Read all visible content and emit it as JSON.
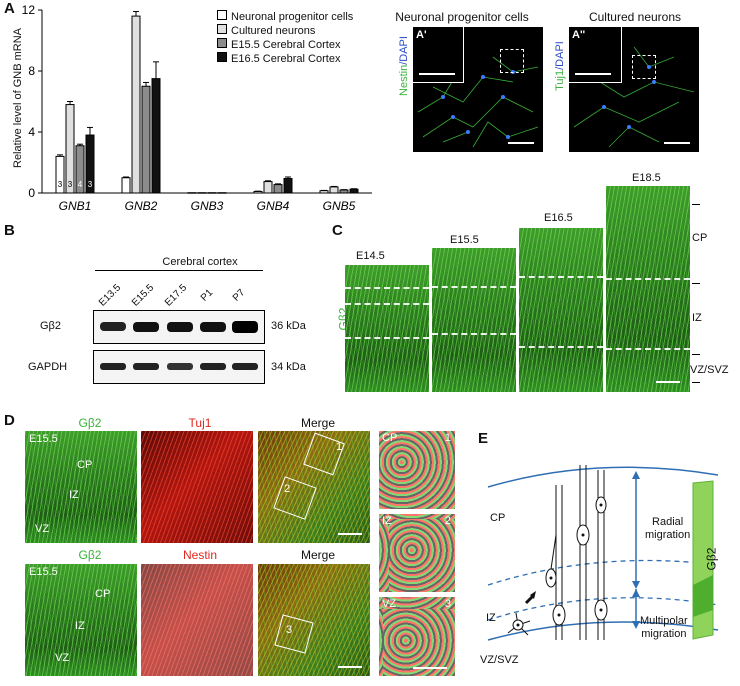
{
  "panels": {
    "A": "A",
    "B": "B",
    "C": "C",
    "D": "D",
    "E": "E",
    "A_prime": "A'",
    "A_doubleprime": "A''"
  },
  "chart_data": {
    "type": "bar",
    "ylabel": "Relative level of GNB mRNA",
    "ylim": [
      0,
      12
    ],
    "yticks": [
      "0",
      "4",
      "8",
      "12"
    ],
    "categories": [
      "GNB1",
      "GNB2",
      "GNB3",
      "GNB4",
      "GNB5"
    ],
    "series": [
      {
        "name": "Neuronal progenitor cells",
        "values": [
          2.4,
          1.0,
          0.02,
          0.1,
          0.15
        ],
        "errors": [
          0.1,
          0.05,
          0.01,
          0.02,
          0.02
        ],
        "color": "#ffffff"
      },
      {
        "name": "Cultured neurons",
        "values": [
          5.8,
          11.6,
          0.02,
          0.75,
          0.4
        ],
        "errors": [
          0.2,
          0.3,
          0.01,
          0.05,
          0.03
        ],
        "color": "#e0e0e0"
      },
      {
        "name": "E15.5 Cerebral Cortex",
        "values": [
          3.1,
          7.0,
          0.02,
          0.55,
          0.2
        ],
        "errors": [
          0.1,
          0.25,
          0.01,
          0.05,
          0.02
        ],
        "color": "#8c8c8c"
      },
      {
        "name": "E16.5 Cerebral Cortex",
        "values": [
          3.8,
          7.5,
          0.02,
          0.95,
          0.25
        ],
        "errors": [
          0.5,
          1.1,
          0.01,
          0.1,
          0.03
        ],
        "color": "#111111"
      }
    ],
    "bar_numbers": [
      "3",
      "3",
      "4",
      "3"
    ]
  },
  "imagesA": {
    "npc_title": "Neuronal progenitor cells",
    "neu_title": "Cultured neurons",
    "npc_stain_a": "Nestin",
    "npc_stain_b": "/DAPI",
    "neu_stain_a": "Tuj1",
    "neu_stain_b": "/DAPI"
  },
  "blotB": {
    "header": "Cerebral cortex",
    "lanes": [
      "E13.5",
      "E15.5",
      "E17.5",
      "P1",
      "P7"
    ],
    "rows": [
      {
        "name": "Gβ2",
        "kda": "36 kDa"
      },
      {
        "name": "GAPDH",
        "kda": "34 kDa"
      }
    ]
  },
  "panelC": {
    "ylabel": "Gβ2",
    "stages": [
      "E14.5",
      "E15.5",
      "E16.5",
      "E18.5"
    ],
    "zones": [
      "CP",
      "IZ",
      "VZ/SVZ"
    ]
  },
  "panelD": {
    "row1": {
      "label_green": "Gβ2",
      "label_red": "Tuj1",
      "label_merge": "Merge",
      "age": "E15.5",
      "zones": [
        "CP",
        "IZ",
        "VZ"
      ],
      "boxes": [
        "1",
        "2"
      ]
    },
    "row2": {
      "label_green": "Gβ2",
      "label_red": "Nestin",
      "label_merge": "Merge",
      "age": "E15.5",
      "zones": [
        "CP",
        "IZ",
        "VZ"
      ],
      "boxes": [
        "3"
      ]
    },
    "zooms": [
      {
        "zone": "CP",
        "num": "1"
      },
      {
        "zone": "IZ",
        "num": "2"
      },
      {
        "zone": "VZ",
        "num": "3"
      }
    ]
  },
  "panelE": {
    "zones": [
      "CP",
      "IZ",
      "VZ/SVZ"
    ],
    "radial": [
      "Radial",
      "migration"
    ],
    "multipolar": [
      "Multipolar",
      "migration"
    ],
    "bar_label": "Gβ2"
  }
}
